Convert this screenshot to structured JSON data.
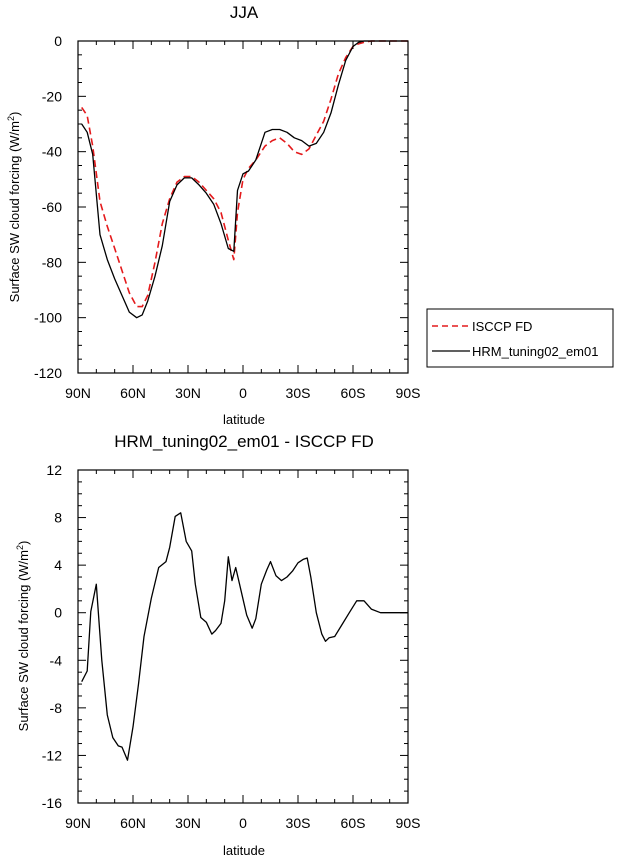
{
  "chart_data": [
    {
      "type": "line",
      "title": "JJA",
      "xlabel": "latitude",
      "ylabel": "Surface SW cloud forcing (W/m²)",
      "xlim": [
        90,
        -90
      ],
      "ylim": [
        -120,
        0
      ],
      "xticks": [
        90,
        60,
        30,
        0,
        -30,
        -60,
        -90
      ],
      "xtick_labels": [
        "90N",
        "60N",
        "30N",
        "0",
        "30S",
        "60S",
        "90S"
      ],
      "yticks": [
        0,
        -20,
        -40,
        -60,
        -80,
        -100,
        -120
      ],
      "ytick_labels": [
        "0",
        "-20",
        "-40",
        "-60",
        "-80",
        "-100",
        "-120"
      ],
      "grid": false,
      "legend": "right",
      "series": [
        {
          "name": "ISCCP FD",
          "color": "#e41a1c",
          "style": "dashed",
          "x": [
            88,
            85,
            82,
            78,
            74,
            70,
            66,
            62,
            58,
            55,
            52,
            48,
            44,
            40,
            36,
            32,
            28,
            24,
            20,
            16,
            12,
            8,
            5,
            3,
            0,
            -3,
            -7,
            -12,
            -16,
            -20,
            -24,
            -28,
            -32,
            -36,
            -40,
            -44,
            -48,
            -52,
            -56,
            -60,
            -63,
            -66,
            -70,
            -75,
            -80,
            -85,
            -90
          ],
          "y": [
            -24,
            -27,
            -38,
            -58,
            -67,
            -75,
            -83,
            -91,
            -96,
            -96,
            -92,
            -80,
            -66,
            -57,
            -51,
            -49,
            -49,
            -51,
            -54,
            -57,
            -62,
            -72,
            -79,
            -62,
            -50,
            -46,
            -43,
            -38,
            -36,
            -35,
            -37,
            -40,
            -41,
            -39,
            -34,
            -29,
            -21,
            -12,
            -6,
            -2,
            -1,
            -0.5,
            0,
            0,
            0,
            0,
            0
          ]
        },
        {
          "name": "HRM_tuning02_em01",
          "color": "#000000",
          "style": "solid",
          "x": [
            88,
            85,
            82,
            78,
            74,
            70,
            66,
            62,
            58,
            55,
            52,
            48,
            44,
            40,
            36,
            32,
            28,
            24,
            20,
            16,
            12,
            8,
            5,
            3,
            0,
            -3,
            -7,
            -12,
            -16,
            -20,
            -24,
            -28,
            -32,
            -36,
            -40,
            -44,
            -48,
            -52,
            -56,
            -60,
            -63,
            -66,
            -70,
            -75,
            -80,
            -85,
            -90
          ],
          "y": [
            -30,
            -33,
            -41,
            -70,
            -79,
            -86,
            -92,
            -98,
            -100,
            -99,
            -94,
            -85,
            -74,
            -58,
            -52,
            -49.5,
            -49.5,
            -52,
            -55,
            -59,
            -66,
            -75,
            -76,
            -54,
            -48,
            -47,
            -43,
            -33,
            -32,
            -32,
            -33,
            -35,
            -36,
            -38,
            -37,
            -33,
            -26,
            -16,
            -7,
            -2,
            -0.5,
            0,
            0,
            0,
            0,
            0,
            0
          ]
        }
      ]
    },
    {
      "type": "line",
      "title": "HRM_tuning02_em01 - ISCCP FD",
      "xlabel": "latitude",
      "ylabel": "Surface SW cloud forcing (W/m²)",
      "xlim": [
        90,
        -90
      ],
      "ylim": [
        -16,
        12
      ],
      "xticks": [
        90,
        60,
        30,
        0,
        -30,
        -60,
        -90
      ],
      "xtick_labels": [
        "90N",
        "60N",
        "30N",
        "0",
        "30S",
        "60S",
        "90S"
      ],
      "yticks": [
        12,
        8,
        4,
        0,
        -4,
        -8,
        -12,
        -16
      ],
      "ytick_labels": [
        "12",
        "8",
        "4",
        "0",
        "-4",
        "-8",
        "-12",
        "-16"
      ],
      "grid": false,
      "series": [
        {
          "color": "#000000",
          "style": "solid",
          "x": [
            88,
            85,
            83,
            80,
            77,
            74,
            71,
            68,
            66,
            63,
            60,
            57,
            54,
            50,
            46,
            42,
            40,
            37,
            34,
            31,
            28,
            26,
            23,
            20,
            17,
            15,
            12,
            10,
            8,
            6,
            4,
            1,
            -2,
            -5,
            -7,
            -10,
            -13,
            -15,
            -18,
            -21,
            -24,
            -27,
            -30,
            -33,
            -35,
            -37,
            -40,
            -43,
            -45,
            -47,
            -50,
            -54,
            -58,
            -62,
            -66,
            -70,
            -75,
            -80,
            -85,
            -90
          ],
          "y": [
            -5.8,
            -4.9,
            0.1,
            2.4,
            -4.0,
            -8.6,
            -10.5,
            -11.2,
            -11.3,
            -12.4,
            -9.6,
            -6.0,
            -2.0,
            1.2,
            3.8,
            4.3,
            5.5,
            8.1,
            8.4,
            6.0,
            5.2,
            2.4,
            -0.4,
            -0.8,
            -1.8,
            -1.5,
            -0.9,
            1.0,
            4.7,
            2.7,
            3.8,
            1.8,
            -0.2,
            -1.3,
            -0.5,
            2.4,
            3.6,
            4.3,
            3.1,
            2.7,
            3.0,
            3.5,
            4.2,
            4.5,
            4.6,
            3.0,
            0.0,
            -1.8,
            -2.4,
            -2.1,
            -2.0,
            -1.0,
            0.0,
            1.0,
            1.0,
            0.3,
            0.0,
            0.0,
            0.0,
            0.0
          ]
        }
      ]
    }
  ],
  "legend": {
    "items": [
      {
        "label": "ISCCP FD",
        "color": "#e41a1c",
        "style": "dashed"
      },
      {
        "label": "HRM_tuning02_em01",
        "color": "#000000",
        "style": "solid"
      }
    ]
  }
}
